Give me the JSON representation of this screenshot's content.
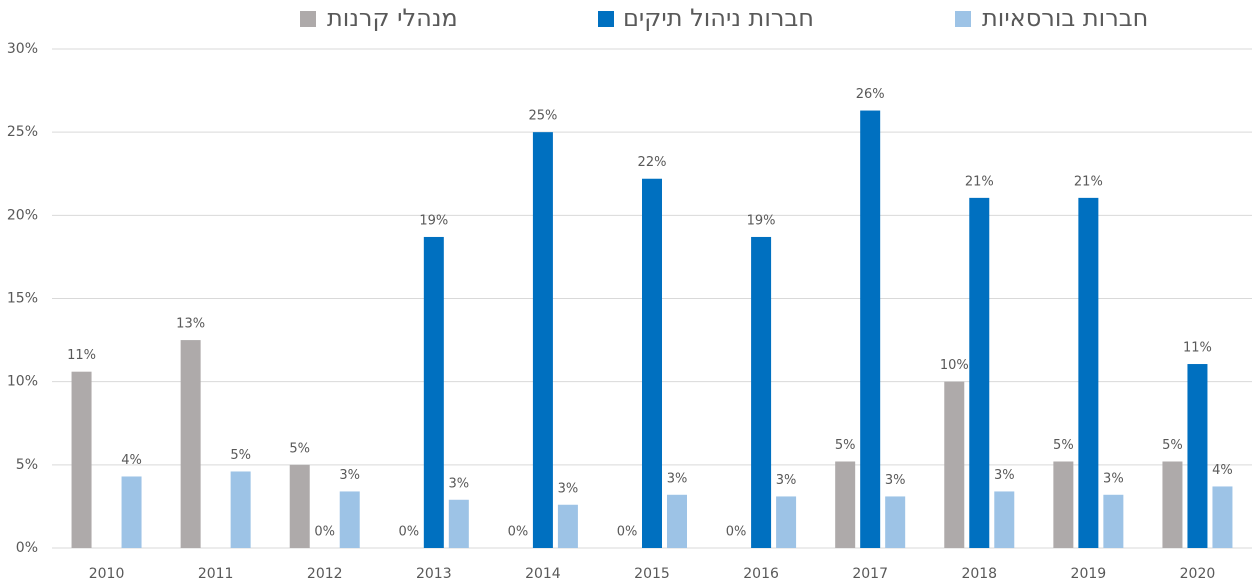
{
  "chart_data": {
    "type": "bar",
    "categories": [
      "2010",
      "2011",
      "2012",
      "2013",
      "2014",
      "2015",
      "2016",
      "2017",
      "2018",
      "2019",
      "2020"
    ],
    "series": [
      {
        "name": "מנהלי קרנות",
        "color": "#aeaaaa",
        "values": [
          10.6,
          12.5,
          5.0,
          0,
          0,
          0,
          0,
          5.2,
          10.0,
          5.2,
          5.2
        ],
        "value_labels": [
          "11%",
          "13%",
          "5%",
          "0%",
          "0%",
          "0%",
          "0%",
          "5%",
          "10%",
          "5%",
          "5%"
        ]
      },
      {
        "name": "חברות ניהול תיקים",
        "color": "#0070c0",
        "values": [
          null,
          null,
          0,
          18.7,
          25.0,
          22.2,
          18.7,
          26.3,
          21.05,
          21.05,
          11.06
        ],
        "value_labels": [
          null,
          null,
          "0%",
          "19%",
          "25%",
          "22%",
          "19%",
          "26%",
          "21%",
          "21%",
          "11%"
        ]
      },
      {
        "name": "חברות בורסאיות",
        "color": "#9dc3e6",
        "values": [
          4.3,
          4.6,
          3.4,
          2.9,
          2.6,
          3.2,
          3.1,
          3.1,
          3.4,
          3.2,
          3.7
        ],
        "value_labels": [
          "4%",
          "5%",
          "3%",
          "3%",
          "3%",
          "3%",
          "3%",
          "3%",
          "3%",
          "3%",
          "4%"
        ]
      }
    ],
    "ylim": [
      0,
      30
    ],
    "yticks": [
      {
        "value": 0,
        "label": "0%"
      },
      {
        "value": 5,
        "label": "5%"
      },
      {
        "value": 10,
        "label": "10%"
      },
      {
        "value": 15,
        "label": "15%"
      },
      {
        "value": 20,
        "label": "20%"
      },
      {
        "value": 25,
        "label": "25%"
      },
      {
        "value": 30,
        "label": "30%"
      }
    ],
    "grid": true,
    "legend": "top"
  }
}
